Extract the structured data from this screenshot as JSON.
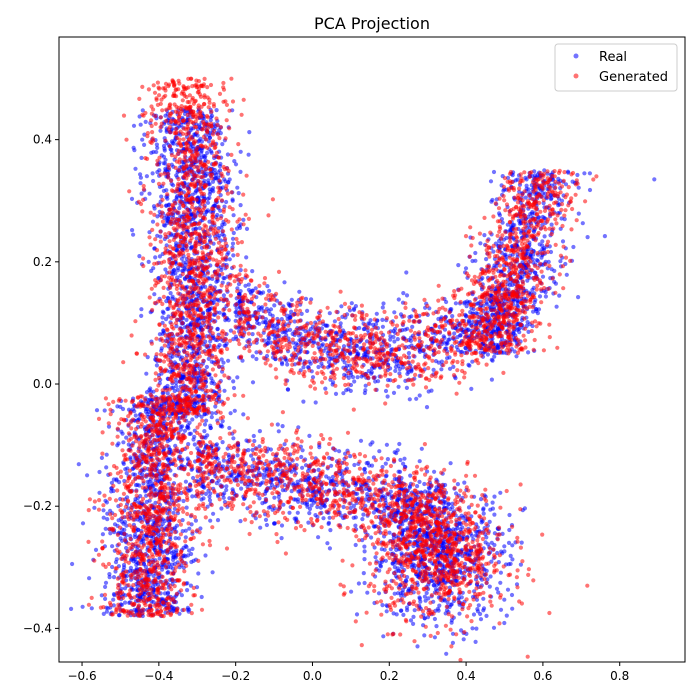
{
  "chart_data": {
    "type": "scatter",
    "title": "PCA Projection",
    "xlabel": "",
    "ylabel": "",
    "xlim": [
      -0.66,
      0.97
    ],
    "ylim": [
      -0.455,
      0.568
    ],
    "xticks": [
      -0.6,
      -0.4,
      -0.2,
      0.0,
      0.2,
      0.4,
      0.6,
      0.8
    ],
    "yticks": [
      -0.4,
      -0.2,
      0.0,
      0.2,
      0.4
    ],
    "xtick_labels": [
      "−0.6",
      "−0.4",
      "−0.2",
      "0.0",
      "0.2",
      "0.4",
      "0.6",
      "0.8"
    ],
    "ytick_labels": [
      "−0.4",
      "−0.2",
      "0.0",
      "0.2",
      "0.4"
    ],
    "grid": false,
    "legend_position": "top-right",
    "series": [
      {
        "name": "Real",
        "color": "#0000ff",
        "clusters": [
          {
            "region": "left-vertical-band",
            "x_range": [
              -0.5,
              -0.15
            ],
            "y_range": [
              -0.05,
              0.45
            ],
            "count": 1400
          },
          {
            "region": "lower-left-blob",
            "x_range": [
              -0.58,
              -0.28
            ],
            "y_range": [
              -0.38,
              -0.02
            ],
            "count": 1100
          },
          {
            "region": "upper-arm",
            "x_range": [
              -0.2,
              0.55
            ],
            "y_range": [
              -0.04,
              0.18
            ],
            "count": 900
          },
          {
            "region": "upper-right-lobe",
            "x_range": [
              0.35,
              0.72
            ],
            "y_range": [
              0.0,
              0.35
            ],
            "count": 700
          },
          {
            "region": "lower-arm",
            "x_range": [
              -0.3,
              0.35
            ],
            "y_range": [
              -0.28,
              -0.07
            ],
            "count": 800
          },
          {
            "region": "lower-right-lobe",
            "x_range": [
              0.15,
              0.55
            ],
            "y_range": [
              -0.4,
              -0.15
            ],
            "count": 800
          }
        ],
        "outliers": [
          {
            "x": 0.89,
            "y": 0.335
          }
        ]
      },
      {
        "name": "Generated",
        "color": "#ff0000",
        "clusters": [
          {
            "region": "left-vertical-band",
            "x_range": [
              -0.5,
              -0.15
            ],
            "y_range": [
              -0.05,
              0.5
            ],
            "count": 1300
          },
          {
            "region": "lower-left-blob",
            "x_range": [
              -0.58,
              -0.28
            ],
            "y_range": [
              -0.38,
              -0.02
            ],
            "count": 1000
          },
          {
            "region": "upper-arm",
            "x_range": [
              -0.2,
              0.55
            ],
            "y_range": [
              -0.05,
              0.18
            ],
            "count": 800
          },
          {
            "region": "upper-right-lobe",
            "x_range": [
              0.35,
              0.72
            ],
            "y_range": [
              0.0,
              0.35
            ],
            "count": 650
          },
          {
            "region": "lower-arm",
            "x_range": [
              -0.3,
              0.35
            ],
            "y_range": [
              -0.28,
              -0.07
            ],
            "count": 750
          },
          {
            "region": "lower-right-lobe",
            "x_range": [
              0.15,
              0.55
            ],
            "y_range": [
              -0.41,
              -0.15
            ],
            "count": 750
          }
        ],
        "outliers": []
      }
    ]
  }
}
